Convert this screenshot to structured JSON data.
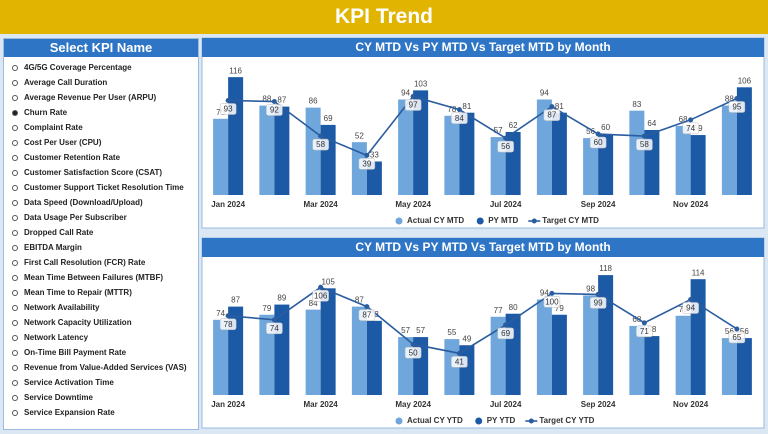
{
  "header": {
    "title": "KPI Trend"
  },
  "sidebar": {
    "title": "Select KPI Name",
    "selected_index": 3,
    "items": [
      "4G/5G Coverage Percentage",
      "Average Call Duration",
      "Average Revenue Per User (ARPU)",
      "Churn Rate",
      "Complaint Rate",
      "Cost Per User (CPU)",
      "Customer Retention Rate",
      "Customer Satisfaction Score (CSAT)",
      "Customer Support Ticket Resolution Time",
      "Data Speed (Download/Upload)",
      "Data Usage Per Subscriber",
      "Dropped Call Rate",
      "EBITDA Margin",
      "First Call Resolution (FCR) Rate",
      "Mean Time Between Failures (MTBF)",
      "Mean Time to Repair (MTTR)",
      "Network Availability",
      "Network Capacity Utilization",
      "Network Latency",
      "On-Time Bill Payment Rate",
      "Revenue from Value-Added Services (VAS)",
      "Service Activation Time",
      "Service Downtime",
      "Service Expansion Rate"
    ]
  },
  "chart_data": [
    {
      "type": "combo",
      "title": "CY MTD Vs PY MTD Vs Target MTD by Month",
      "ylim": [
        0,
        125
      ],
      "categories": [
        "Jan 2024",
        null,
        "Mar 2024",
        null,
        "May 2024",
        null,
        "Jul 2024",
        null,
        "Sep 2024",
        null,
        "Nov 2024",
        null
      ],
      "series": [
        {
          "name": "Actual CY MTD",
          "type": "bar",
          "color": "#6fa6dc",
          "values": [
            75,
            88,
            86,
            52,
            94,
            78,
            57,
            94,
            56,
            83,
            68,
            88
          ]
        },
        {
          "name": "PY MTD",
          "type": "bar",
          "color": "#1c5aa6",
          "values": [
            116,
            87,
            69,
            33,
            103,
            81,
            62,
            81,
            60,
            64,
            59,
            106
          ]
        },
        {
          "name": "Target CY MTD",
          "type": "line",
          "color": "#2a5d9f",
          "values": [
            93,
            92,
            58,
            39,
            97,
            84,
            56,
            87,
            60,
            58,
            74,
            95
          ]
        }
      ]
    },
    {
      "type": "combo",
      "title": "CY MTD Vs PY MTD Vs Target MTD by Month",
      "ylim": [
        0,
        125
      ],
      "categories": [
        "Jan 2024",
        null,
        "Mar 2024",
        null,
        "May 2024",
        null,
        "Jul 2024",
        null,
        "Sep 2024",
        null,
        "Nov 2024",
        null
      ],
      "series": [
        {
          "name": "Actual CY YTD",
          "type": "bar",
          "color": "#6fa6dc",
          "values": [
            74,
            79,
            84,
            87,
            57,
            55,
            77,
            94,
            98,
            68,
            78,
            56
          ]
        },
        {
          "name": "PY YTD",
          "type": "bar",
          "color": "#1c5aa6",
          "values": [
            87,
            89,
            105,
            73,
            57,
            49,
            80,
            79,
            118,
            58,
            114,
            56
          ]
        },
        {
          "name": "Target CY YTD",
          "type": "line",
          "color": "#2a5d9f",
          "values": [
            78,
            74,
            106,
            87,
            50,
            41,
            69,
            100,
            99,
            71,
            94,
            65
          ]
        }
      ]
    }
  ]
}
